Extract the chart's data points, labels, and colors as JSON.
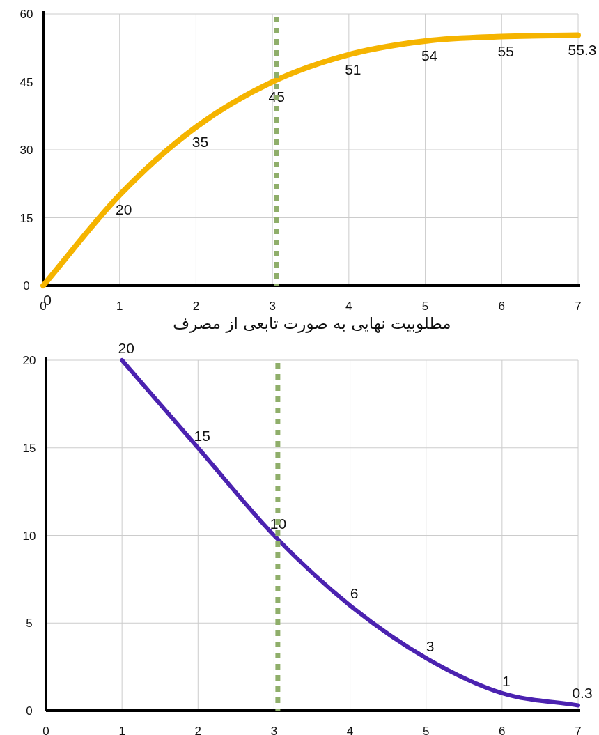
{
  "chart_data": [
    {
      "type": "line",
      "x": [
        0,
        1,
        2,
        3,
        4,
        5,
        6,
        7
      ],
      "series": [
        {
          "color": "#f5b400",
          "values": [
            0,
            20,
            35,
            45,
            51,
            54,
            55,
            55.3
          ]
        }
      ],
      "xlim": [
        0,
        7
      ],
      "xticks": [
        0,
        1,
        2,
        3,
        4,
        5,
        6,
        7
      ],
      "ylim": [
        0,
        60
      ],
      "yticks": [
        0,
        15,
        30,
        45,
        60
      ],
      "grid": true,
      "data_labels": true,
      "ref_lines": [
        {
          "axis": "x",
          "value": 3.05,
          "color": "#8fae6a",
          "line_style": "dotted"
        }
      ]
    },
    {
      "type": "line",
      "title": "مطلوبیت نهایی به صورت تابعی از مصرف",
      "x": [
        1,
        2,
        3,
        4,
        5,
        6,
        7
      ],
      "series": [
        {
          "color": "#4b22b0",
          "values": [
            20,
            15,
            10,
            6,
            3,
            1,
            0.3
          ]
        }
      ],
      "xlim": [
        0,
        7
      ],
      "xticks": [
        0,
        1,
        2,
        3,
        4,
        5,
        6,
        7
      ],
      "ylim": [
        0,
        20
      ],
      "yticks": [
        0,
        5,
        10,
        15,
        20
      ],
      "grid": true,
      "data_labels": true,
      "ref_lines": [
        {
          "axis": "x",
          "value": 3.05,
          "color": "#8fae6a",
          "line_style": "dotted"
        }
      ]
    }
  ]
}
